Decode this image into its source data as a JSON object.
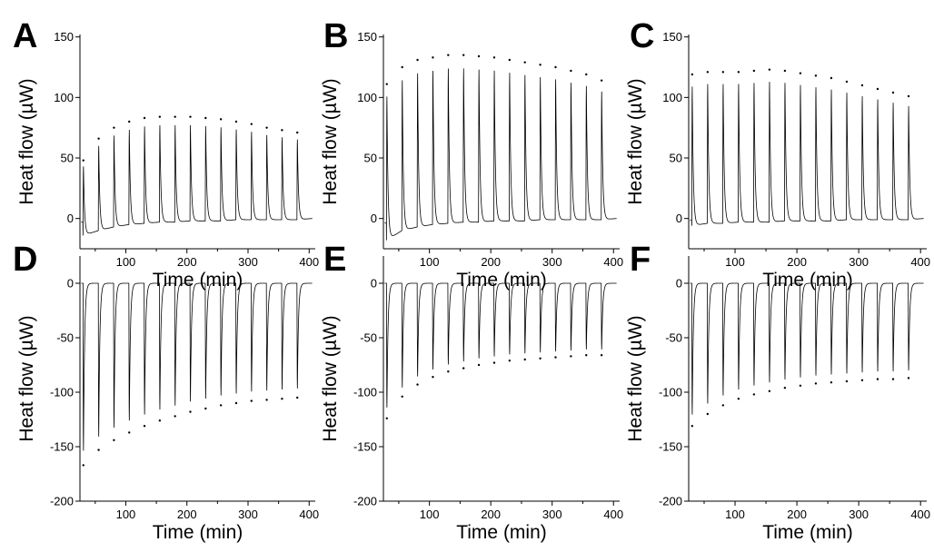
{
  "figure": {
    "background": "#ffffff",
    "trace_color": "#000000"
  },
  "chart_data": [
    {
      "panel": "A",
      "type": "line",
      "xlabel": "Time (min)",
      "ylabel": "Heat flow (µW)",
      "xlim": [
        25,
        410
      ],
      "ylim": [
        -25,
        152
      ],
      "xticks": [
        100,
        200,
        300,
        400
      ],
      "yticks": [
        0,
        50,
        100,
        150
      ],
      "series": [
        {
          "injection_times": [
            30,
            55,
            80,
            105,
            130,
            155,
            180,
            205,
            230,
            255,
            280,
            305,
            330,
            355,
            380
          ],
          "peak_values": [
            48,
            66,
            75,
            80,
            83,
            84,
            84,
            84,
            83,
            82,
            80,
            78,
            75,
            73,
            71
          ],
          "baseline_values": [
            -14,
            -10,
            -7,
            -5,
            -4,
            -3,
            -3,
            -2,
            -2,
            -2,
            -1,
            -1,
            -1,
            -1,
            -1
          ]
        }
      ]
    },
    {
      "panel": "B",
      "type": "line",
      "xlabel": "Time (min)",
      "ylabel": "Heat flow (µW)",
      "xlim": [
        25,
        410
      ],
      "ylim": [
        -25,
        152
      ],
      "xticks": [
        100,
        200,
        300,
        400
      ],
      "yticks": [
        0,
        50,
        100,
        150
      ],
      "series": [
        {
          "injection_times": [
            30,
            55,
            80,
            105,
            130,
            155,
            180,
            205,
            230,
            255,
            280,
            305,
            330,
            355,
            380
          ],
          "peak_values": [
            111,
            125,
            131,
            133,
            135,
            135,
            134,
            133,
            131,
            129,
            127,
            125,
            122,
            119,
            114
          ],
          "baseline_values": [
            -18,
            -10,
            -7,
            -5,
            -4,
            -3,
            -3,
            -2,
            -2,
            -2,
            -1,
            -1,
            -1,
            -1,
            -1
          ]
        }
      ]
    },
    {
      "panel": "C",
      "type": "line",
      "xlabel": "Time (min)",
      "ylabel": "Heat flow (µW)",
      "xlim": [
        25,
        410
      ],
      "ylim": [
        -25,
        152
      ],
      "xticks": [
        100,
        200,
        300,
        400
      ],
      "yticks": [
        0,
        50,
        100,
        150
      ],
      "series": [
        {
          "injection_times": [
            30,
            55,
            80,
            105,
            130,
            155,
            180,
            205,
            230,
            255,
            280,
            305,
            330,
            355,
            380
          ],
          "peak_values": [
            119,
            121,
            121,
            121,
            122,
            123,
            122,
            120,
            118,
            116,
            113,
            110,
            107,
            104,
            101
          ],
          "baseline_values": [
            -6,
            -4,
            -4,
            -3,
            -3,
            -3,
            -2,
            -2,
            -2,
            -2,
            -1,
            -1,
            -1,
            -1,
            -1
          ]
        }
      ]
    },
    {
      "panel": "D",
      "type": "line",
      "xlabel": "Time (min)",
      "ylabel": "Heat flow (µW)",
      "xlim": [
        25,
        410
      ],
      "ylim": [
        -200,
        25
      ],
      "xticks": [
        100,
        200,
        300,
        400
      ],
      "yticks": [
        0,
        -50,
        -100,
        -150,
        -200
      ],
      "series": [
        {
          "injection_times": [
            30,
            55,
            80,
            105,
            130,
            155,
            180,
            205,
            230,
            255,
            280,
            305,
            330,
            355,
            380
          ],
          "peak_values": [
            -167,
            -153,
            -144,
            -137,
            -131,
            -126,
            -122,
            -118,
            -115,
            -112,
            -110,
            -108,
            -107,
            -106,
            -105
          ],
          "baseline_values": [
            0,
            0,
            0,
            0,
            0,
            0,
            0,
            0,
            0,
            0,
            0,
            0,
            0,
            0,
            0
          ]
        }
      ]
    },
    {
      "panel": "E",
      "type": "line",
      "xlabel": "Time (min)",
      "ylabel": "Heat flow (µW)",
      "xlim": [
        25,
        410
      ],
      "ylim": [
        -200,
        25
      ],
      "xticks": [
        100,
        200,
        300,
        400
      ],
      "yticks": [
        0,
        -50,
        -100,
        -150,
        -200
      ],
      "series": [
        {
          "injection_times": [
            30,
            55,
            80,
            105,
            130,
            155,
            180,
            205,
            230,
            255,
            280,
            305,
            330,
            355,
            380
          ],
          "peak_values": [
            -124,
            -104,
            -93,
            -86,
            -81,
            -78,
            -75,
            -73,
            -71,
            -70,
            -69,
            -68,
            -67,
            -66,
            -66
          ],
          "baseline_values": [
            0,
            0,
            0,
            0,
            0,
            0,
            0,
            0,
            0,
            0,
            0,
            0,
            0,
            0,
            0
          ]
        }
      ]
    },
    {
      "panel": "F",
      "type": "line",
      "xlabel": "Time (min)",
      "ylabel": "Heat flow (µW)",
      "xlim": [
        25,
        410
      ],
      "ylim": [
        -200,
        25
      ],
      "xticks": [
        100,
        200,
        300,
        400
      ],
      "yticks": [
        0,
        -50,
        -100,
        -150,
        -200
      ],
      "series": [
        {
          "injection_times": [
            30,
            55,
            80,
            105,
            130,
            155,
            180,
            205,
            230,
            255,
            280,
            305,
            330,
            355,
            380
          ],
          "peak_values": [
            -131,
            -120,
            -112,
            -106,
            -102,
            -99,
            -96,
            -94,
            -92,
            -91,
            -90,
            -89,
            -88,
            -88,
            -87
          ],
          "baseline_values": [
            0,
            0,
            0,
            0,
            0,
            0,
            0,
            0,
            0,
            0,
            0,
            0,
            0,
            0,
            0
          ]
        }
      ]
    }
  ]
}
